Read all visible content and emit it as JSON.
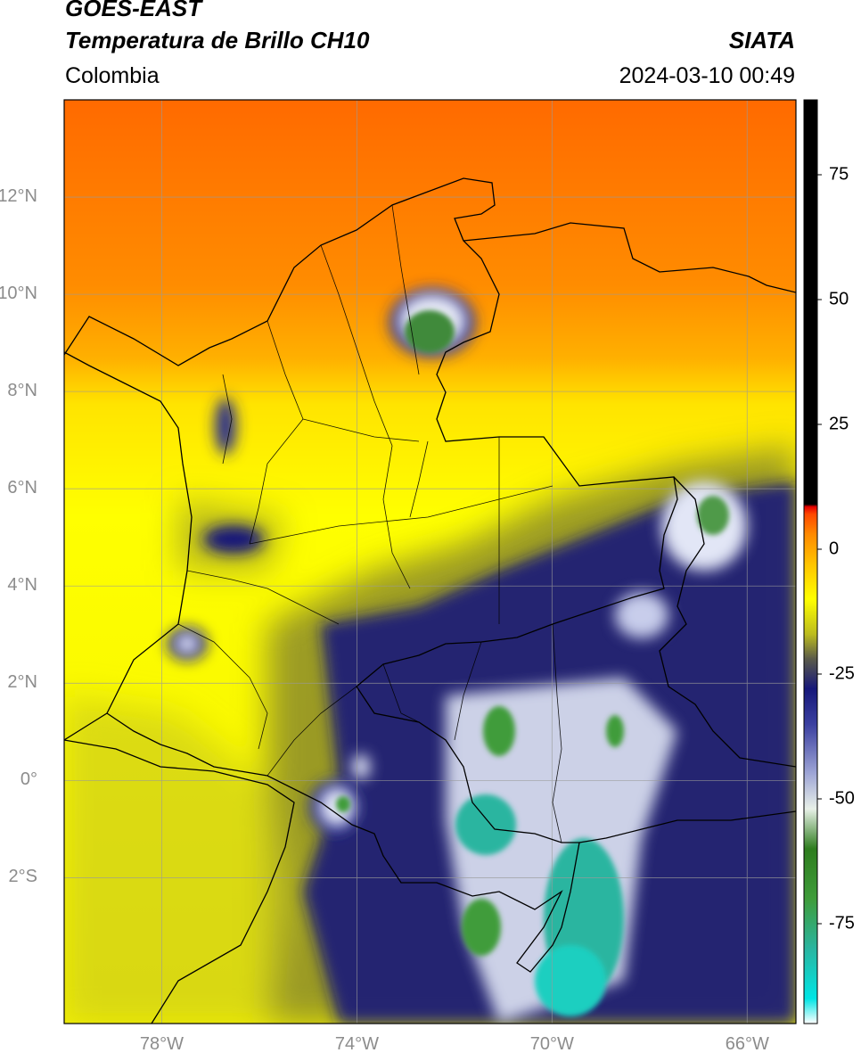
{
  "header": {
    "satellite": "GOES-EAST",
    "product": "Temperatura de Brillo CH10",
    "organization": "SIATA",
    "region": "Colombia",
    "timestamp": "2024-03-10 00:49"
  },
  "map": {
    "lon_range": [
      -80,
      -65
    ],
    "lat_range": [
      -5,
      14
    ],
    "lat_ticks": [
      {
        "value": 12,
        "label": "12°N"
      },
      {
        "value": 10,
        "label": "10°N"
      },
      {
        "value": 8,
        "label": "8°N"
      },
      {
        "value": 6,
        "label": "6°N"
      },
      {
        "value": 4,
        "label": "4°N"
      },
      {
        "value": 2,
        "label": "2°N"
      },
      {
        "value": 0,
        "label": "0°"
      },
      {
        "value": -2,
        "label": "2°S"
      }
    ],
    "lon_ticks": [
      {
        "value": -78,
        "label": "78°W"
      },
      {
        "value": -74,
        "label": "74°W"
      },
      {
        "value": -70,
        "label": "70°W"
      },
      {
        "value": -66,
        "label": "66°W"
      }
    ],
    "gridlines": true
  },
  "colorbar": {
    "range": [
      -95,
      90
    ],
    "ticks": [
      {
        "value": 75,
        "label": "75"
      },
      {
        "value": 50,
        "label": "50"
      },
      {
        "value": 25,
        "label": "25"
      },
      {
        "value": 0,
        "label": "0"
      },
      {
        "value": -25,
        "label": "-25"
      },
      {
        "value": -50,
        "label": "-50"
      },
      {
        "value": -75,
        "label": "-75"
      }
    ],
    "stops": [
      {
        "value": -95,
        "color": "#ffffff"
      },
      {
        "value": -90,
        "color": "#00e5e5"
      },
      {
        "value": -80,
        "color": "#2ab5a0"
      },
      {
        "value": -70,
        "color": "#3f9c3a"
      },
      {
        "value": -60,
        "color": "#2e7d1e"
      },
      {
        "value": -52,
        "color": "#e8f0e8"
      },
      {
        "value": -45,
        "color": "#9fa6d6"
      },
      {
        "value": -35,
        "color": "#3a3fa0"
      },
      {
        "value": -28,
        "color": "#16187a"
      },
      {
        "value": -22,
        "color": "#5a5a4a"
      },
      {
        "value": -17,
        "color": "#bcbc1e"
      },
      {
        "value": -10,
        "color": "#ffff00"
      },
      {
        "value": -3,
        "color": "#ffc400"
      },
      {
        "value": 3,
        "color": "#ff8a00"
      },
      {
        "value": 7,
        "color": "#ff4800"
      },
      {
        "value": 8.5,
        "color": "#e60000"
      },
      {
        "value": 9,
        "color": "#000000"
      },
      {
        "value": 90,
        "color": "#000000"
      }
    ]
  }
}
